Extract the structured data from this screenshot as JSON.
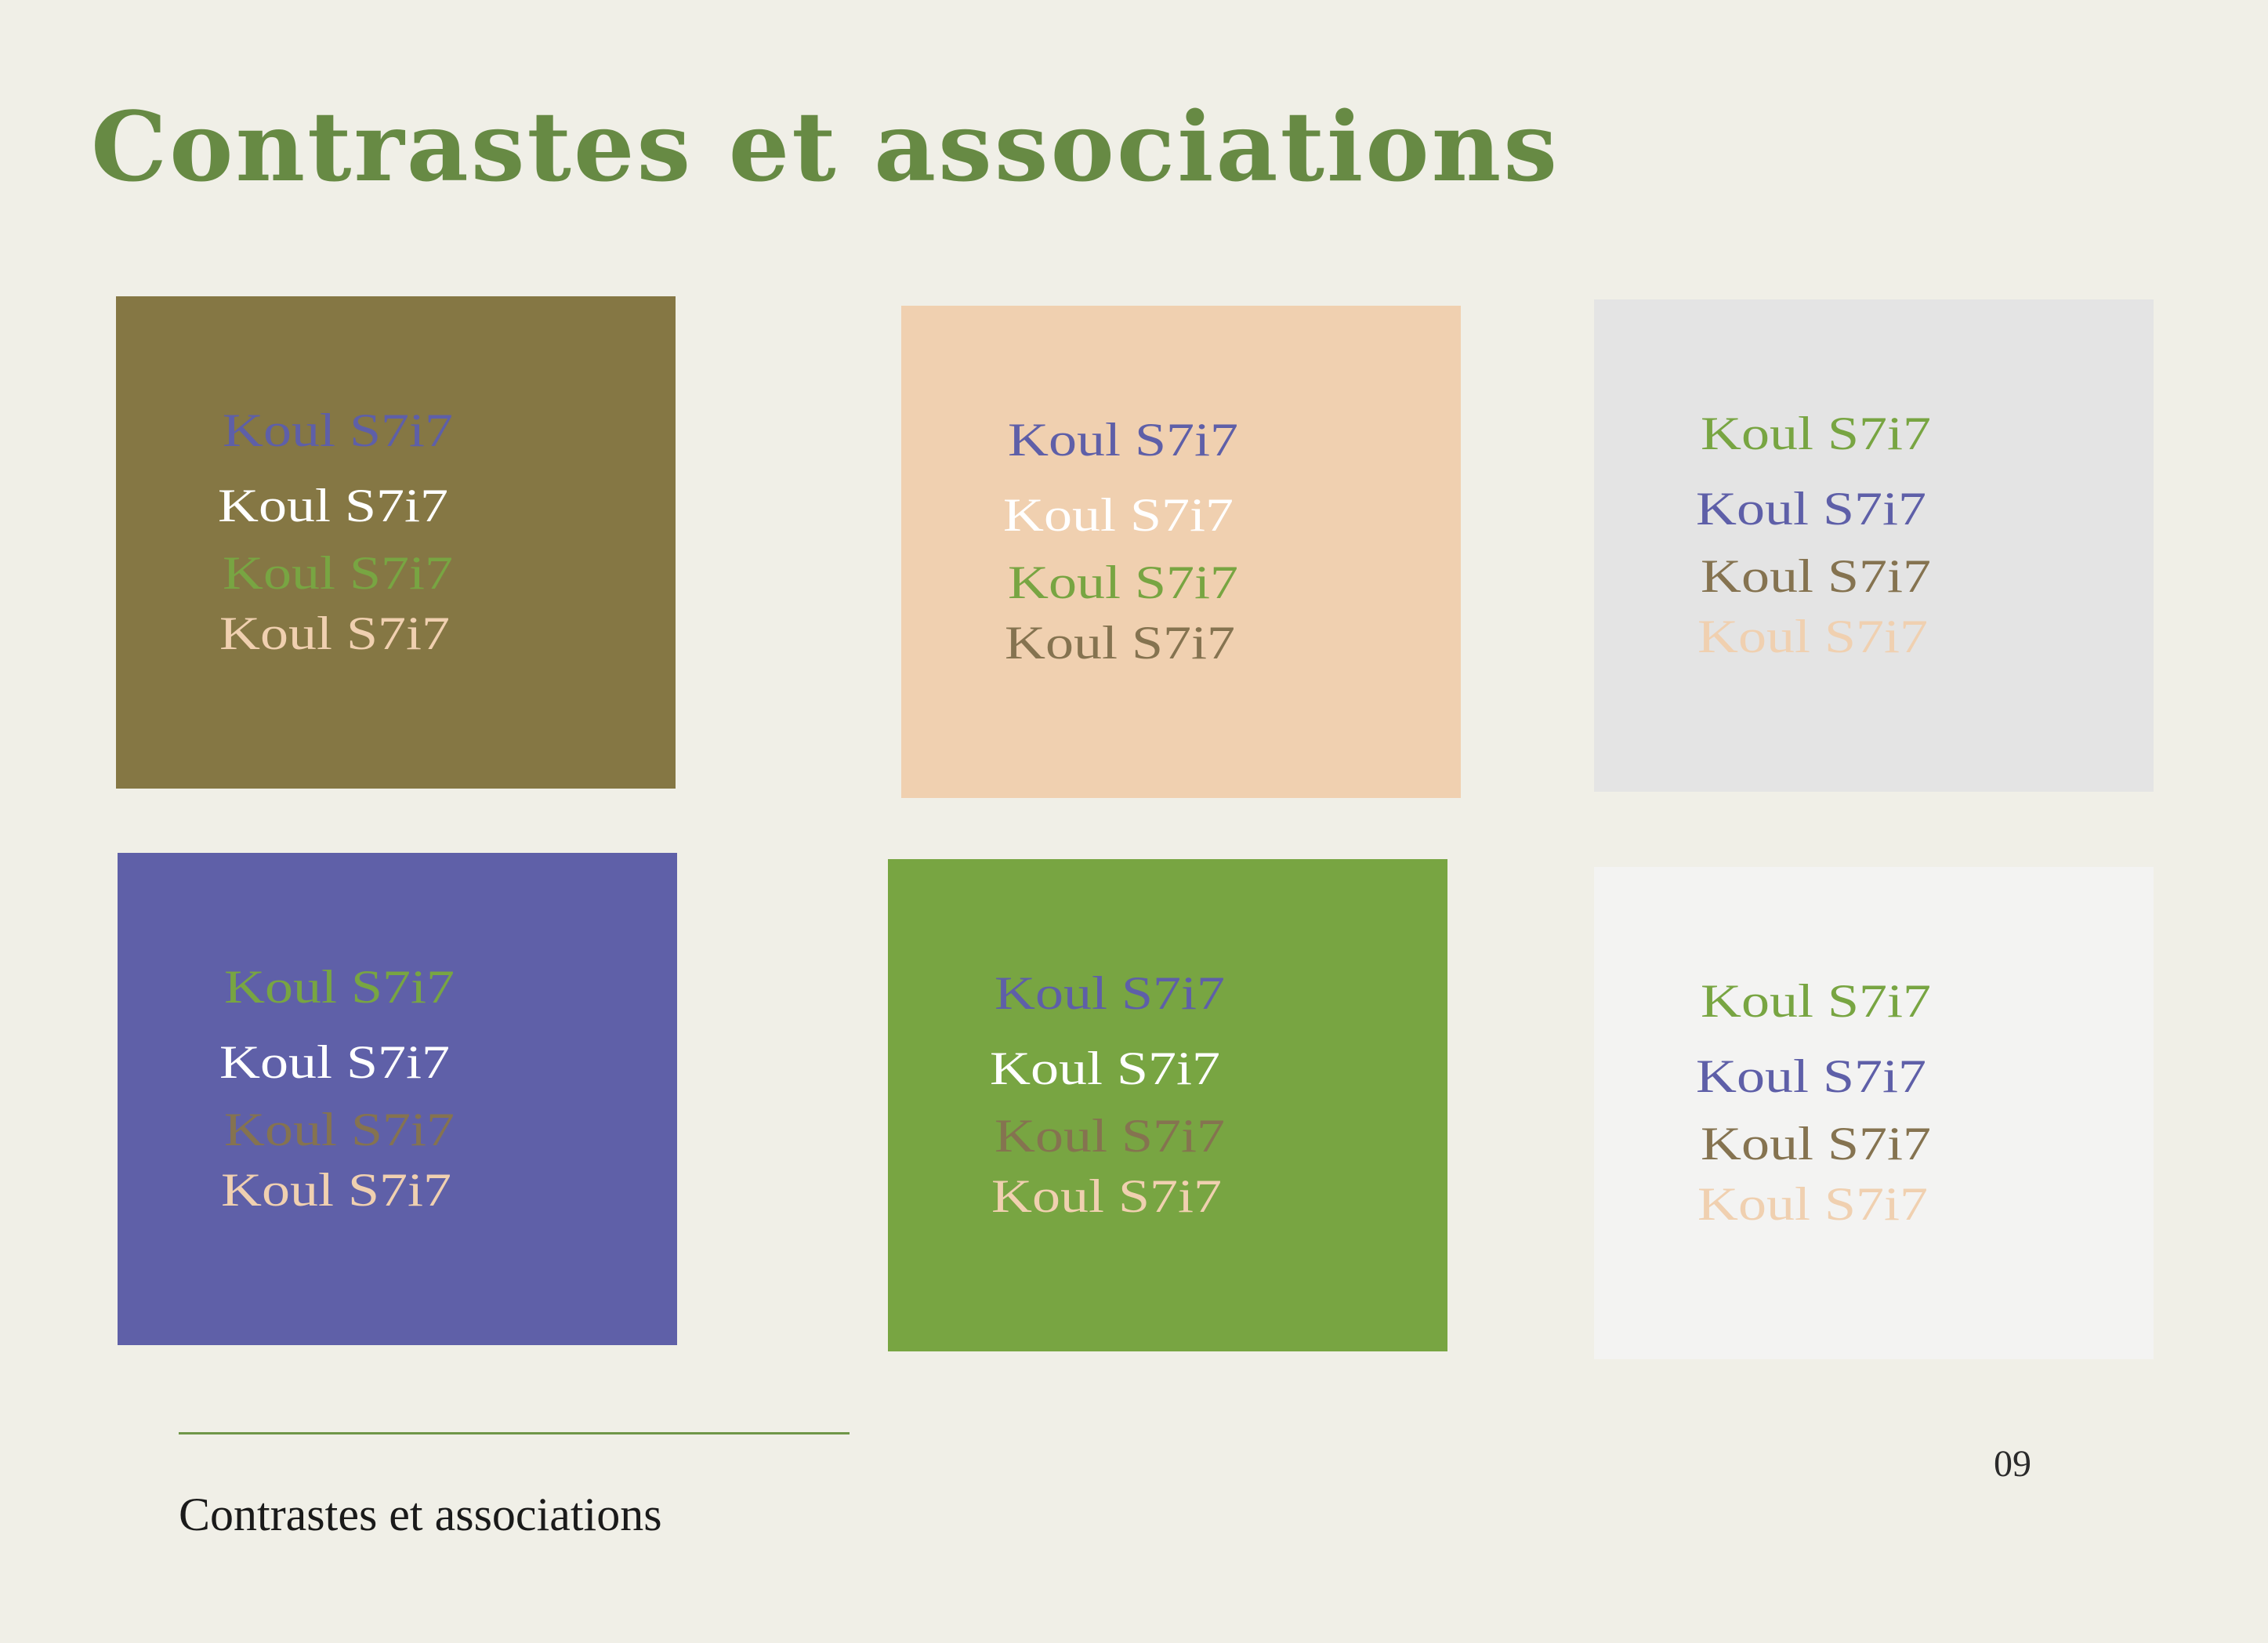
{
  "colors": {
    "background": "#f0efe7",
    "title": "#678a44",
    "rule": "#6f9648",
    "footer_text": "#1a1a1a",
    "page_number": "#2a2a2a",
    "olive": "#857744",
    "peach": "#f0d0b0",
    "light_gray": "#e4e4e4",
    "indigo": "#5f60a8",
    "green": "#78a542",
    "off_white": "#f3f3f2",
    "white": "#ffffff",
    "brown": "#857350",
    "text_indigo": "#5e5fa8",
    "text_green": "#78a542",
    "text_peach": "#f0d0b0"
  },
  "title": "Contrastes et associations",
  "footer": {
    "title": "Contrastes et associations",
    "page_number": "09"
  },
  "swatches": [
    {
      "background": "#857744",
      "samples": [
        {
          "text": "Koul  S7i7",
          "color": "#5e5fa8"
        },
        {
          "text": "Koul  S7i7",
          "color": "#ffffff"
        },
        {
          "text": "Koul  S7i7",
          "color": "#78a542"
        },
        {
          "text": "Koul  S7i7",
          "color": "#f0d0b0"
        }
      ]
    },
    {
      "background": "#f0d0b0",
      "samples": [
        {
          "text": "Koul  S7i7",
          "color": "#5e5fa8"
        },
        {
          "text": "Koul  S7i7",
          "color": "#ffffff"
        },
        {
          "text": "Koul  S7i7",
          "color": "#78a542"
        },
        {
          "text": "Koul  S7i7",
          "color": "#857350"
        }
      ]
    },
    {
      "background": "#e4e4e4",
      "samples": [
        {
          "text": "Koul  S7i7",
          "color": "#78a542"
        },
        {
          "text": "Koul  S7i7",
          "color": "#5e5fa8"
        },
        {
          "text": "Koul  S7i7",
          "color": "#857350"
        },
        {
          "text": "Koul  S7i7",
          "color": "#f0d0b0"
        }
      ]
    },
    {
      "background": "#5f60a8",
      "samples": [
        {
          "text": "Koul  S7i7",
          "color": "#78a542"
        },
        {
          "text": "Koul  S7i7",
          "color": "#ffffff"
        },
        {
          "text": "Koul  S7i7",
          "color": "#857350"
        },
        {
          "text": "Koul  S7i7",
          "color": "#f0d0b0"
        }
      ]
    },
    {
      "background": "#78a542",
      "samples": [
        {
          "text": "Koul  S7i7",
          "color": "#5e5fa8"
        },
        {
          "text": "Koul  S7i7",
          "color": "#ffffff"
        },
        {
          "text": "Koul  S7i7",
          "color": "#857350"
        },
        {
          "text": "Koul  S7i7",
          "color": "#f0d0b0"
        }
      ]
    },
    {
      "background": "#f3f3f2",
      "samples": [
        {
          "text": "Koul  S7i7",
          "color": "#78a542"
        },
        {
          "text": "Koul  S7i7",
          "color": "#5e5fa8"
        },
        {
          "text": "Koul  S7i7",
          "color": "#857350"
        },
        {
          "text": "Koul  S7i7",
          "color": "#f0d0b0"
        }
      ]
    }
  ]
}
